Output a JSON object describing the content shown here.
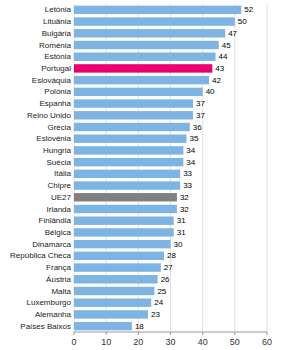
{
  "chart_data": {
    "type": "bar",
    "orientation": "horizontal",
    "categories": [
      "Países Baixos",
      "Alemanha",
      "Luxemburgo",
      "Malta",
      "Áustria",
      "França",
      "República Checa",
      "Dinamarca",
      "Bélgica",
      "Finlândia",
      "Irlanda",
      "UE27",
      "Chipre",
      "Itália",
      "Suécia",
      "Hungria",
      "Eslovénia",
      "Grécia",
      "Reino Unido",
      "Espanha",
      "Polónia",
      "Eslováquia",
      "Portugal",
      "Estónia",
      "Roménia",
      "Bulgária",
      "Lituânia",
      "Letónia"
    ],
    "values": [
      18,
      23,
      24,
      25,
      26,
      27,
      28,
      30,
      31,
      31,
      32,
      32,
      33,
      33,
      34,
      34,
      35,
      36,
      37,
      37,
      40,
      42,
      43,
      44,
      45,
      47,
      50,
      52
    ],
    "colors": [
      "#7EB4E3",
      "#7EB4E3",
      "#7EB4E3",
      "#7EB4E3",
      "#7EB4E3",
      "#7EB4E3",
      "#7EB4E3",
      "#7EB4E3",
      "#7EB4E3",
      "#7EB4E3",
      "#7EB4E3",
      "#808080",
      "#7EB4E3",
      "#7EB4E3",
      "#7EB4E3",
      "#7EB4E3",
      "#7EB4E3",
      "#7EB4E3",
      "#7EB4E3",
      "#7EB4E3",
      "#7EB4E3",
      "#7EB4E3",
      "#E8006E",
      "#7EB4E3",
      "#7EB4E3",
      "#7EB4E3",
      "#7EB4E3",
      "#7EB4E3"
    ],
    "xlim": [
      0,
      60
    ],
    "xticks": [
      0,
      10,
      20,
      30,
      40,
      50,
      60
    ],
    "grid": true,
    "data_labels": true
  }
}
